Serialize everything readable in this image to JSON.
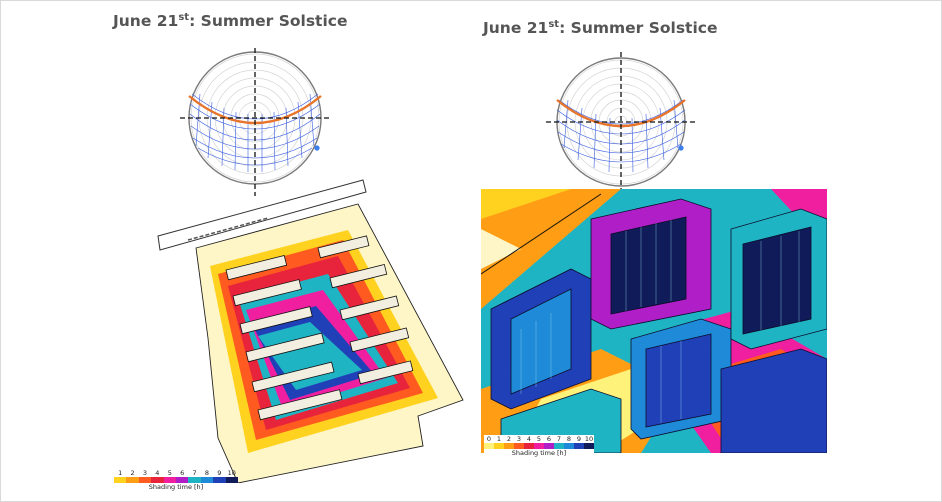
{
  "left_panel": {
    "title_main": "June 21",
    "title_sup": "st",
    "title_rest": ": Summer Solstice",
    "legend": {
      "ticks": [
        "1",
        "2",
        "3",
        "4",
        "5",
        "6",
        "7",
        "8",
        "9",
        "10"
      ],
      "caption": "Shading time [h]"
    }
  },
  "right_panel": {
    "title_main": "June 21",
    "title_sup": "st",
    "title_rest": ": Summer Solstice",
    "legend": {
      "ticks": [
        "0",
        "1",
        "2",
        "3",
        "4",
        "5",
        "6",
        "7",
        "8",
        "9",
        "10"
      ],
      "caption": "Shading time [h]"
    }
  },
  "colors": {
    "sun_path": "#e8742c",
    "grid_blue": "#3a5ee0",
    "scale": [
      "#fff27a",
      "#ffd21f",
      "#ff9e14",
      "#ff5a1f",
      "#e8243c",
      "#f01fa0",
      "#b01ec8",
      "#1fb4c4",
      "#1e8ad8",
      "#2040b8",
      "#101c5a"
    ]
  }
}
